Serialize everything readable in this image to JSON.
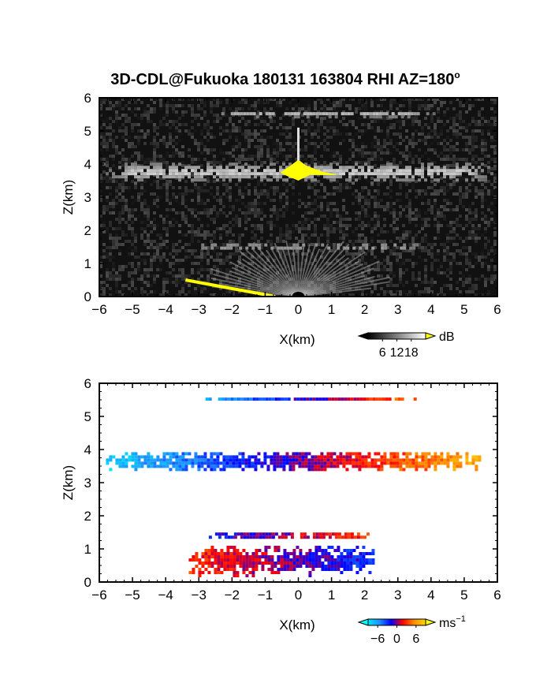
{
  "figure": {
    "title": "3D-CDL@Fukuoka 180131 163804 RHI AZ=180",
    "title_superscript": "o"
  },
  "chart_data": [
    {
      "type": "heatmap",
      "variable": "backscatter intensity",
      "units": "dB",
      "xlabel": "X(km)",
      "ylabel": "Z(km)",
      "xlim": [
        -6,
        6
      ],
      "ylim": [
        0,
        6
      ],
      "x_ticks": [
        -6,
        -5,
        -4,
        -3,
        -2,
        -1,
        0,
        1,
        2,
        3,
        4,
        5,
        6
      ],
      "y_ticks": [
        0,
        1,
        2,
        3,
        4,
        5,
        6
      ],
      "background": "#111111",
      "colorbar": {
        "label": "dB",
        "tick_labels": [
          "6",
          "12",
          "18"
        ],
        "range": [
          0,
          24
        ],
        "over_color": "#ffff00",
        "colors": [
          "#000000",
          "#555555",
          "#aaaaaa",
          "#ffffff"
        ]
      },
      "layers": [
        {
          "z_center": 5.55,
          "thickness": 0.15,
          "x_range": [
            -2.8,
            4.2
          ],
          "intensity": 0.75
        },
        {
          "z_center": 3.8,
          "thickness": 0.45,
          "x_range": [
            -6,
            6
          ],
          "intensity": 0.85
        },
        {
          "z_center": 1.55,
          "thickness": 0.2,
          "x_range": [
            -3.5,
            4.0
          ],
          "intensity": 0.55
        }
      ],
      "saturated_regions": [
        {
          "x_center": 0.0,
          "z_center": 3.8,
          "x_halfwidth": 1.2,
          "z_halfwidth": 0.3
        },
        {
          "x_from": -3.4,
          "z_from": 0.5,
          "x_to": -0.7,
          "z_to": 0.0
        }
      ]
    },
    {
      "type": "heatmap",
      "variable": "Doppler velocity",
      "units": "ms-1",
      "xlabel": "X(km)",
      "ylabel": "Z(km)",
      "xlim": [
        -6,
        6
      ],
      "ylim": [
        0,
        6
      ],
      "x_ticks": [
        -6,
        -5,
        -4,
        -3,
        -2,
        -1,
        0,
        1,
        2,
        3,
        4,
        5,
        6
      ],
      "y_ticks": [
        0,
        1,
        2,
        3,
        4,
        5,
        6
      ],
      "background": "#ffffff",
      "colorbar": {
        "label": "ms",
        "label_superscript": "−1",
        "tick_labels": [
          "−6",
          "0",
          "6"
        ],
        "range": [
          -9,
          9
        ],
        "under_color": "#00ffff",
        "over_color": "#ffff00",
        "colors": [
          "#00e5ff",
          "#1e90ff",
          "#0000ff",
          "#ff0000",
          "#ff8c00",
          "#ffd700"
        ]
      },
      "layers": [
        {
          "z_center": 5.58,
          "thickness": 0.12,
          "x_range": [
            -2.8,
            3.5
          ],
          "v_left": -7,
          "v_right": 5
        },
        {
          "z_center": 3.7,
          "thickness": 0.45,
          "x_range": [
            -5.8,
            5.5
          ],
          "v_left": -8,
          "v_right": 7
        },
        {
          "z_center": 1.45,
          "thickness": 0.2,
          "x_range": [
            -2.7,
            2.2
          ],
          "v_left": -2,
          "v_right": 3
        },
        {
          "z_center": 0.7,
          "thickness": 0.7,
          "x_range": [
            -3.4,
            2.3
          ],
          "v_left": 3,
          "v_right": -3
        }
      ]
    }
  ]
}
